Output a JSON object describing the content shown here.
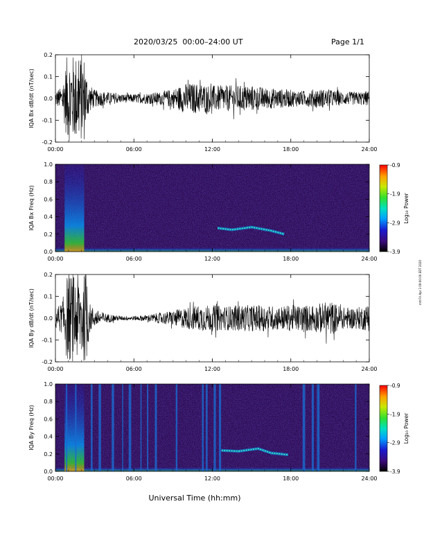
{
  "header": {
    "title": "2020/03/25  00:00–24:00 UT",
    "page": "Page 1/1"
  },
  "side_stamp": "mtt Fri Apr 3 09:00:00 EDT 2020",
  "x_axis": {
    "label": "Universal Time (hh:mm)",
    "ticks": [
      "00:00",
      "06:00",
      "12:00",
      "18:00",
      "24:00"
    ],
    "range_hours": [
      0,
      24
    ]
  },
  "colors": {
    "trace": "#000000",
    "spectrogram_background": "#2a0a50",
    "colormap": [
      "#000000",
      "#3a0a7a",
      "#1a1ad0",
      "#00a0ff",
      "#00e0c0",
      "#30e030",
      "#c8e800",
      "#ffa000",
      "#ff0000"
    ]
  },
  "chart_data": [
    {
      "type": "line",
      "name": "magnetometer-bx",
      "ylabel": "IQA Bx dB/dt (nT/sec)",
      "ylim": [
        -0.2,
        0.2
      ],
      "yticks": [
        "-0.2",
        "-0.1",
        "0.0",
        "0.1",
        "0.2"
      ],
      "amplitude_envelope": {
        "x_hours": [
          0,
          0.5,
          0.9,
          1.0,
          1.6,
          2.2,
          2.5,
          3,
          4,
          5,
          6,
          7,
          8,
          9,
          10,
          11,
          12,
          13,
          14,
          15,
          16,
          17,
          18,
          19,
          20,
          21,
          22,
          23,
          24
        ],
        "y": [
          0.04,
          0.05,
          0.2,
          0.2,
          0.2,
          0.2,
          0.07,
          0.04,
          0.03,
          0.02,
          0.02,
          0.025,
          0.03,
          0.045,
          0.07,
          0.07,
          0.06,
          0.06,
          0.06,
          0.06,
          0.05,
          0.045,
          0.04,
          0.035,
          0.045,
          0.04,
          0.03,
          0.03,
          0.035
        ]
      }
    },
    {
      "type": "heatmap",
      "name": "spectrogram-bx",
      "ylabel": "IQA Bx Freq (Hz)",
      "ylim": [
        0.0,
        1.0
      ],
      "yticks": [
        "0.0",
        "0.2",
        "0.4",
        "0.6",
        "0.8",
        "1.0"
      ],
      "colorbar": {
        "label": "Log₁₀ Power",
        "range": [
          -3.9,
          -0.9
        ],
        "ticks": [
          "-0.9",
          "-1.9",
          "-2.9",
          "-3.9"
        ]
      },
      "band_trace": {
        "x_hours": [
          12.4,
          13.5,
          15,
          16.5,
          17.5
        ],
        "freq_hz": [
          0.27,
          0.25,
          0.28,
          0.24,
          0.2
        ]
      }
    },
    {
      "type": "line",
      "name": "magnetometer-by",
      "ylabel": "IQA By dB/dt (nT/sec)",
      "ylim": [
        -0.2,
        0.2
      ],
      "yticks": [
        "-0.2",
        "-0.1",
        "0.0",
        "0.1",
        "0.2"
      ],
      "amplitude_envelope": {
        "x_hours": [
          0,
          0.5,
          0.9,
          1.0,
          1.6,
          2.4,
          2.6,
          3,
          4,
          5,
          6,
          7,
          8,
          9,
          10,
          11,
          12,
          13,
          14,
          15,
          16,
          17,
          18,
          19,
          20,
          21,
          22,
          23,
          24
        ],
        "y": [
          0.05,
          0.07,
          0.2,
          0.2,
          0.2,
          0.2,
          0.07,
          0.04,
          0.02,
          0.01,
          0.01,
          0.015,
          0.025,
          0.035,
          0.05,
          0.06,
          0.06,
          0.055,
          0.06,
          0.06,
          0.06,
          0.055,
          0.06,
          0.06,
          0.065,
          0.08,
          0.05,
          0.05,
          0.06
        ]
      }
    },
    {
      "type": "heatmap",
      "name": "spectrogram-by",
      "ylabel": "IQA By Freq (Hz)",
      "ylim": [
        0.0,
        1.0
      ],
      "yticks": [
        "0.0",
        "0.2",
        "0.4",
        "0.6",
        "0.8",
        "1.0"
      ],
      "colorbar": {
        "label": "Log₁₀ Power",
        "range": [
          -3.9,
          -0.9
        ],
        "ticks": [
          "-0.9",
          "-1.9",
          "-2.9",
          "-3.9"
        ]
      },
      "broadband_stripes_hours": [
        0.8,
        1.5,
        2.7,
        3.3,
        4.3,
        5.1,
        5.6,
        6.5,
        7.0,
        7.6,
        9.2,
        11.2,
        11.5,
        12.1,
        12.5,
        18.9,
        19.6,
        20.0,
        22.9
      ],
      "band_trace": {
        "x_hours": [
          12.7,
          14,
          15.5,
          16.5,
          17.8
        ],
        "freq_hz": [
          0.24,
          0.23,
          0.26,
          0.21,
          0.19
        ]
      }
    }
  ]
}
